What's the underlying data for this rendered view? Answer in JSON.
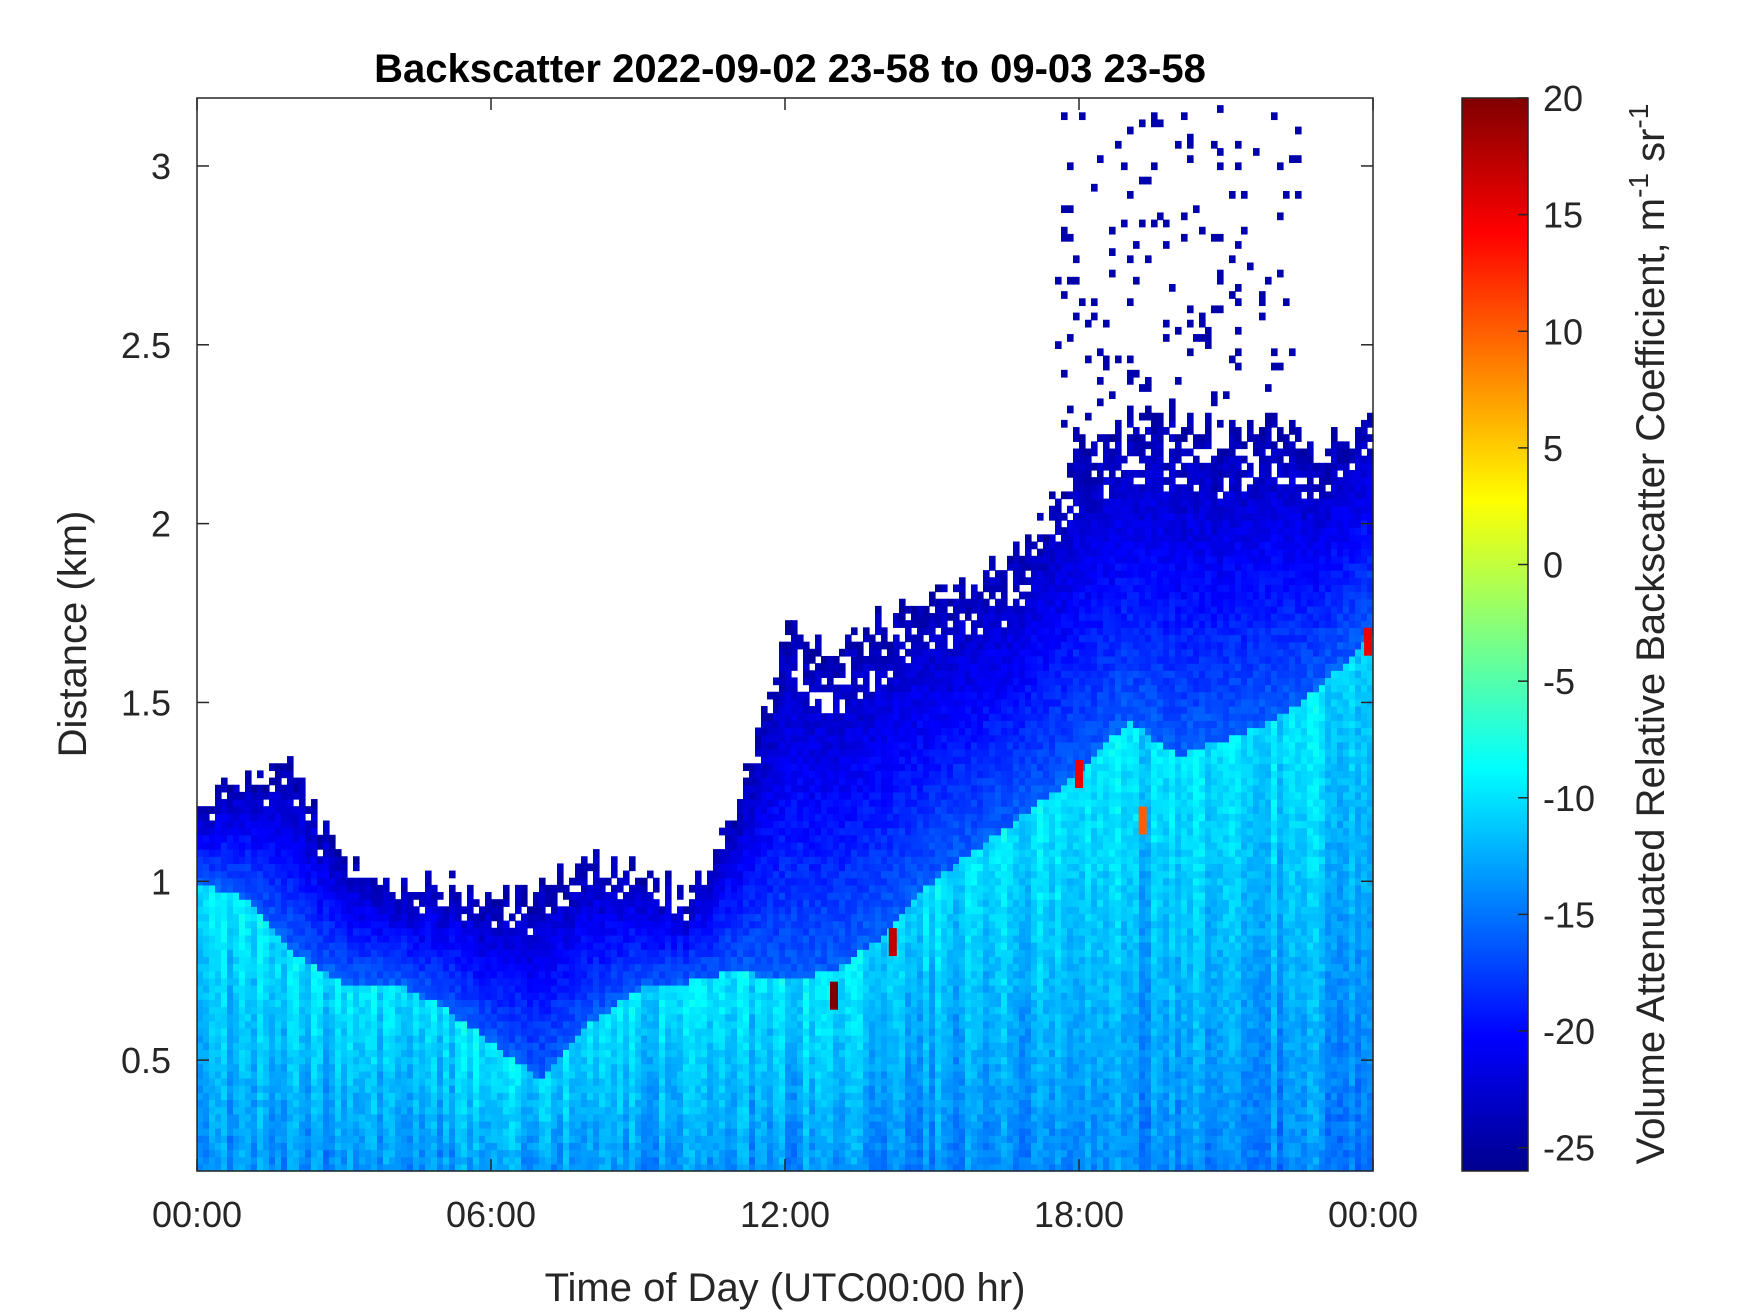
{
  "chart_data": {
    "type": "heatmap",
    "title": "Backscatter 2022-09-02 23-58 to 09-03 23-58",
    "xlabel": "Time of Day (UTC00:00 hr)",
    "ylabel": "Distance (km)",
    "colorbar_label_parts": [
      "Volume Attenuated Relative Backscatter Coefficient, m",
      "-1",
      " sr",
      "-1"
    ],
    "colormap": "jet",
    "xlim": [
      0,
      24
    ],
    "ylim": [
      0.19,
      3.19
    ],
    "clim": [
      -26,
      20
    ],
    "x_ticks": [
      0,
      6,
      12,
      18,
      24
    ],
    "x_tick_labels": [
      "00:00",
      "06:00",
      "12:00",
      "18:00",
      "00:00"
    ],
    "y_ticks": [
      0.5,
      1,
      1.5,
      2,
      2.5,
      3
    ],
    "y_tick_labels": [
      "0.5",
      "1",
      "1.5",
      "2",
      "2.5",
      "3"
    ],
    "colorbar_ticks": [
      -25,
      -20,
      -15,
      -10,
      -5,
      0,
      5,
      10,
      15,
      20
    ],
    "colorbar_tick_labels": [
      "-25",
      "-20",
      "-15",
      "-10",
      "-5",
      "0",
      "5",
      "10",
      "15",
      "20"
    ],
    "grid": false,
    "boundary_layer_top_km": {
      "hour": [
        0,
        1,
        2,
        3,
        4,
        5,
        6,
        7,
        8,
        9,
        10,
        11,
        12,
        13,
        14,
        15,
        16,
        17,
        18,
        19,
        20,
        21,
        22,
        23,
        24
      ],
      "km": [
        1.2,
        1.32,
        1.3,
        1.05,
        1.0,
        1.0,
        0.95,
        0.98,
        1.05,
        1.05,
        0.95,
        1.2,
        1.7,
        1.65,
        1.75,
        1.8,
        1.85,
        1.95,
        2.2,
        2.3,
        2.3,
        2.25,
        2.3,
        2.2,
        2.35
      ]
    },
    "aerosol_layer_top_km": {
      "hour": [
        0,
        1,
        2,
        3,
        4,
        5,
        6,
        7,
        8,
        9,
        10,
        11,
        12,
        13,
        14,
        15,
        16,
        17,
        18,
        19,
        20,
        21,
        22,
        23,
        24
      ],
      "km": [
        1.0,
        0.95,
        0.8,
        0.72,
        0.72,
        0.65,
        0.55,
        0.45,
        0.6,
        0.7,
        0.72,
        0.75,
        0.72,
        0.75,
        0.85,
        1.0,
        1.1,
        1.2,
        1.3,
        1.45,
        1.35,
        1.4,
        1.45,
        1.55,
        1.7
      ]
    },
    "peak_backscatter_points": [
      {
        "hour": 13.0,
        "km": 0.68,
        "value": 20
      },
      {
        "hour": 14.2,
        "km": 0.83,
        "value": 17
      },
      {
        "hour": 18.0,
        "km": 1.3,
        "value": 15
      },
      {
        "hour": 19.3,
        "km": 1.17,
        "value": 10
      },
      {
        "hour": 23.9,
        "km": 1.67,
        "value": 15
      }
    ]
  }
}
